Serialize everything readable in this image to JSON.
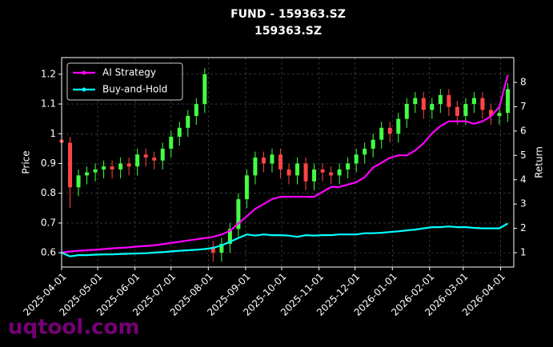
{
  "chart_data": {
    "type": "candlestick",
    "title": "FUND - 159363.SZ",
    "subtitle": "159363.SZ",
    "ylabel": "Price",
    "y2label": "Return",
    "watermark": "uqtool.com",
    "x": [
      "2025-04-01",
      "2025-04-08",
      "2025-04-15",
      "2025-04-22",
      "2025-04-29",
      "2025-05-06",
      "2025-05-13",
      "2025-05-20",
      "2025-05-27",
      "2025-06-03",
      "2025-06-10",
      "2025-06-17",
      "2025-06-24",
      "2025-07-01",
      "2025-07-08",
      "2025-07-15",
      "2025-07-22",
      "2025-07-29",
      "2025-08-05",
      "2025-08-12",
      "2025-08-19",
      "2025-08-26",
      "2025-09-02",
      "2025-09-09",
      "2025-09-16",
      "2025-09-23",
      "2025-09-30",
      "2025-10-07",
      "2025-10-14",
      "2025-10-21",
      "2025-10-28",
      "2025-11-04",
      "2025-11-11",
      "2025-11-18",
      "2025-11-25",
      "2025-12-02",
      "2025-12-09",
      "2025-12-16",
      "2025-12-23",
      "2025-12-30",
      "2026-01-06",
      "2026-01-13",
      "2026-01-20",
      "2026-01-27",
      "2026-02-03",
      "2026-02-10",
      "2026-02-17",
      "2026-02-24",
      "2026-03-03",
      "2026-03-10",
      "2026-03-17",
      "2026-03-24",
      "2026-03-31",
      "2026-04-07"
    ],
    "open": [
      0.98,
      0.97,
      0.82,
      0.86,
      0.87,
      0.88,
      0.89,
      0.88,
      0.9,
      0.89,
      0.93,
      0.92,
      0.91,
      0.95,
      0.99,
      1.02,
      1.06,
      1.1,
      0.62,
      0.6,
      0.63,
      0.68,
      0.78,
      0.86,
      0.92,
      0.9,
      0.93,
      0.88,
      0.86,
      0.9,
      0.84,
      0.88,
      0.87,
      0.86,
      0.88,
      0.9,
      0.93,
      0.95,
      0.98,
      1.02,
      1.0,
      1.05,
      1.1,
      1.12,
      1.08,
      1.1,
      1.13,
      1.09,
      1.06,
      1.1,
      1.12,
      1.08,
      1.06,
      1.07
    ],
    "high": [
      1.0,
      0.99,
      0.88,
      0.89,
      0.9,
      0.91,
      0.91,
      0.92,
      0.92,
      0.95,
      0.95,
      0.94,
      0.97,
      1.01,
      1.04,
      1.08,
      1.12,
      1.22,
      0.64,
      0.65,
      0.7,
      0.8,
      0.88,
      0.94,
      0.94,
      0.95,
      0.95,
      0.9,
      0.92,
      0.92,
      0.9,
      0.9,
      0.89,
      0.9,
      0.92,
      0.95,
      0.97,
      1.0,
      1.04,
      1.04,
      1.07,
      1.12,
      1.14,
      1.14,
      1.12,
      1.15,
      1.15,
      1.11,
      1.12,
      1.14,
      1.14,
      1.1,
      1.09,
      1.17
    ],
    "low": [
      0.94,
      0.75,
      0.79,
      0.83,
      0.84,
      0.85,
      0.85,
      0.85,
      0.86,
      0.86,
      0.89,
      0.88,
      0.88,
      0.92,
      0.96,
      0.99,
      1.03,
      1.07,
      0.57,
      0.57,
      0.6,
      0.65,
      0.75,
      0.83,
      0.87,
      0.87,
      0.85,
      0.83,
      0.83,
      0.81,
      0.81,
      0.84,
      0.83,
      0.83,
      0.85,
      0.87,
      0.9,
      0.92,
      0.95,
      0.97,
      0.97,
      1.02,
      1.07,
      1.05,
      1.05,
      1.07,
      1.06,
      1.03,
      1.03,
      1.07,
      1.05,
      1.03,
      1.03,
      1.04
    ],
    "close": [
      0.97,
      0.82,
      0.86,
      0.87,
      0.88,
      0.89,
      0.88,
      0.9,
      0.89,
      0.93,
      0.92,
      0.91,
      0.95,
      0.99,
      1.02,
      1.06,
      1.1,
      1.2,
      0.6,
      0.63,
      0.68,
      0.78,
      0.86,
      0.92,
      0.9,
      0.93,
      0.88,
      0.86,
      0.9,
      0.84,
      0.88,
      0.87,
      0.86,
      0.88,
      0.9,
      0.93,
      0.95,
      0.98,
      1.02,
      1.0,
      1.05,
      1.1,
      1.12,
      1.08,
      1.1,
      1.13,
      1.09,
      1.06,
      1.1,
      1.12,
      1.08,
      1.06,
      1.07,
      1.15
    ],
    "up_color": "#44ff44",
    "down_color": "#ff4444",
    "series": [
      {
        "name": "AI Strategy",
        "type": "line",
        "axis": "y2",
        "color": "#ff00ff",
        "values": [
          1.0,
          1.05,
          1.08,
          1.1,
          1.12,
          1.15,
          1.18,
          1.2,
          1.22,
          1.25,
          1.28,
          1.3,
          1.35,
          1.4,
          1.45,
          1.5,
          1.55,
          1.6,
          1.65,
          1.75,
          1.9,
          2.2,
          2.5,
          2.8,
          3.0,
          3.2,
          3.3,
          3.3,
          3.3,
          3.3,
          3.3,
          3.5,
          3.7,
          3.7,
          3.8,
          3.9,
          4.1,
          4.5,
          4.7,
          4.9,
          5.0,
          5.0,
          5.2,
          5.5,
          5.9,
          6.2,
          6.4,
          6.4,
          6.4,
          6.3,
          6.4,
          6.6,
          7.0,
          8.3
        ]
      },
      {
        "name": "Buy-and-Hold",
        "type": "line",
        "axis": "y2",
        "color": "#00ffff",
        "values": [
          1.0,
          0.85,
          0.9,
          0.9,
          0.92,
          0.93,
          0.93,
          0.95,
          0.96,
          0.97,
          0.98,
          1.0,
          1.02,
          1.05,
          1.08,
          1.1,
          1.12,
          1.15,
          1.2,
          1.3,
          1.45,
          1.6,
          1.75,
          1.7,
          1.75,
          1.72,
          1.72,
          1.7,
          1.65,
          1.72,
          1.7,
          1.72,
          1.72,
          1.75,
          1.75,
          1.75,
          1.8,
          1.8,
          1.82,
          1.85,
          1.88,
          1.92,
          1.95,
          2.0,
          2.05,
          2.05,
          2.08,
          2.05,
          2.05,
          2.02,
          2.0,
          2.0,
          2.0,
          2.2
        ]
      }
    ],
    "xlim": [
      "2025-04-01",
      "2026-04-12"
    ],
    "xticks": [
      "2025-04-01",
      "2025-05-01",
      "2025-06-01",
      "2025-07-01",
      "2025-08-01",
      "2025-09-01",
      "2025-10-01",
      "2025-11-01",
      "2025-12-01",
      "2026-01-01",
      "2026-02-01",
      "2026-03-01",
      "2026-04-01"
    ],
    "ylim": [
      0.552,
      1.256
    ],
    "yticks": [
      0.6,
      0.7,
      0.8,
      0.9,
      1.0,
      1.1,
      1.2
    ],
    "y2lim": [
      0.41,
      9.02
    ],
    "y2ticks": [
      1,
      2,
      3,
      4,
      5,
      6,
      7,
      8
    ],
    "grid": true,
    "legend": "upper left"
  }
}
